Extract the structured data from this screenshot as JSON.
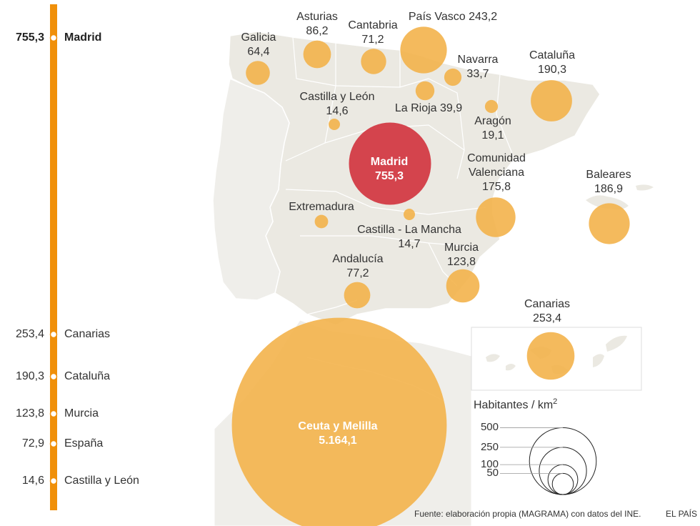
{
  "colors": {
    "axis": "#f0900a",
    "bubble": "#f3b34b",
    "madrid": "#d33b45",
    "land": "#ebe9e2"
  },
  "axis_items": [
    {
      "value": "755,3",
      "name": "Madrid",
      "bold": true
    },
    {
      "value": "253,4",
      "name": "Canarias",
      "bold": false
    },
    {
      "value": "190,3",
      "name": "Cataluña",
      "bold": false
    },
    {
      "value": "123,8",
      "name": "Murcia",
      "bold": false
    },
    {
      "value": "72,9",
      "name": "España",
      "bold": false
    },
    {
      "value": "14,6",
      "name": "Castilla y León",
      "bold": false
    }
  ],
  "regions": [
    {
      "name": "Galicia",
      "value": "64,4",
      "density": 64.4
    },
    {
      "name": "Asturias",
      "value": "86,2",
      "density": 86.2
    },
    {
      "name": "Cantabria",
      "value": "71,2",
      "density": 71.2
    },
    {
      "name": "País Vasco 243,2",
      "value": "",
      "density": 243.2
    },
    {
      "name": "Navarra",
      "value": "33,7",
      "density": 33.7
    },
    {
      "name": "Cataluña",
      "value": "190,3",
      "density": 190.3
    },
    {
      "name": "Castilla y León",
      "value": "14,6",
      "density": 14.6
    },
    {
      "name": "La Rioja 39,9",
      "value": "",
      "density": 39.9
    },
    {
      "name": "Aragón",
      "value": "19,1",
      "density": 19.1
    },
    {
      "name": "Madrid",
      "value": "755,3",
      "density": 755.3
    },
    {
      "name": "Comunidad",
      "value": "Valenciana",
      "extra": "175,8",
      "density": 175.8
    },
    {
      "name": "Baleares",
      "value": "186,9",
      "density": 186.9
    },
    {
      "name": "Extremadura",
      "value": "",
      "density": 20.0
    },
    {
      "name": "Castilla - La Mancha",
      "value": "14,7",
      "density": 14.7
    },
    {
      "name": "Andalucía",
      "value": "77,2",
      "density": 77.2
    },
    {
      "name": "Murcia",
      "value": "123,8",
      "density": 123.8
    },
    {
      "name": "Canarias",
      "value": "253,4",
      "density": 253.4
    },
    {
      "name": "Ceuta y Melilla",
      "value": "5.164,1",
      "density": 5164.1
    }
  ],
  "legend": {
    "title": "Habitantes / km",
    "sup": "2",
    "ticks": [
      {
        "label": "500",
        "value": 500
      },
      {
        "label": "250",
        "value": 250
      },
      {
        "label": "100",
        "value": 100
      },
      {
        "label": "50",
        "value": 50
      }
    ]
  },
  "footer": {
    "source": "Fuente: elaboración propia (MAGRAMA) con datos del INE.",
    "brand": "EL PAÍS"
  }
}
